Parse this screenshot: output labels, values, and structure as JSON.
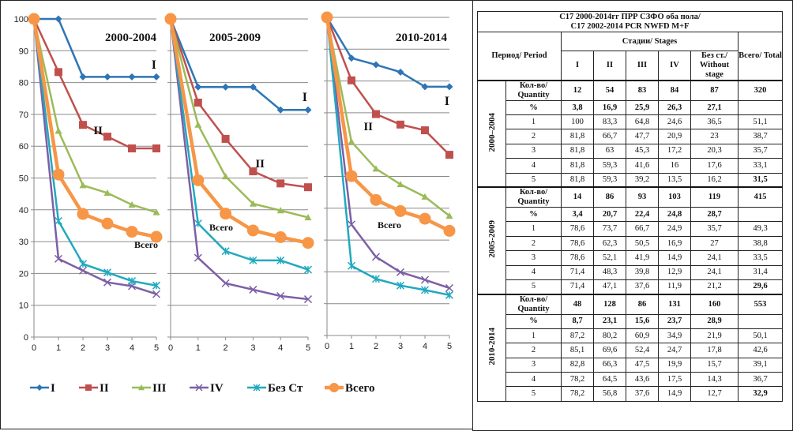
{
  "chart_data": [
    {
      "type": "line",
      "title": "2000-2004",
      "x": [
        0,
        1,
        2,
        3,
        4,
        5
      ],
      "ylim": [
        0,
        100
      ],
      "yticks": [
        0,
        10,
        20,
        30,
        40,
        50,
        60,
        70,
        80,
        90,
        100
      ],
      "xticks": [
        0,
        1,
        2,
        3,
        4,
        5
      ],
      "grid": true,
      "series": [
        {
          "name": "I",
          "values": [
            100,
            100,
            81.8,
            81.8,
            81.8,
            81.8
          ]
        },
        {
          "name": "II",
          "values": [
            100,
            83.3,
            66.7,
            63,
            59.3,
            59.3
          ]
        },
        {
          "name": "III",
          "values": [
            100,
            64.8,
            47.7,
            45.3,
            41.6,
            39.2
          ]
        },
        {
          "name": "IV",
          "values": [
            100,
            24.6,
            20.9,
            17.2,
            16,
            13.5
          ]
        },
        {
          "name": "Без Ст",
          "values": [
            100,
            36.5,
            23,
            20.3,
            17.6,
            16.2
          ]
        },
        {
          "name": "Всего",
          "values": [
            100,
            51.1,
            38.7,
            35.7,
            33.1,
            31.5
          ]
        }
      ],
      "annotations": [
        "I",
        "II",
        "Всего"
      ]
    },
    {
      "type": "line",
      "title": "2005-2009",
      "x": [
        0,
        1,
        2,
        3,
        4,
        5
      ],
      "ylim": [
        0,
        100
      ],
      "xticks": [
        0,
        1,
        2,
        3,
        4,
        5
      ],
      "grid": true,
      "series": [
        {
          "name": "I",
          "values": [
            100,
            78.6,
            78.6,
            78.6,
            71.4,
            71.4
          ]
        },
        {
          "name": "II",
          "values": [
            100,
            73.7,
            62.3,
            52.1,
            48.3,
            47.1
          ]
        },
        {
          "name": "III",
          "values": [
            100,
            66.7,
            50.5,
            41.9,
            39.8,
            37.6
          ]
        },
        {
          "name": "IV",
          "values": [
            100,
            24.9,
            16.9,
            14.9,
            12.9,
            11.9
          ]
        },
        {
          "name": "Без Ст",
          "values": [
            100,
            35.7,
            27,
            24.1,
            24.1,
            21.2
          ]
        },
        {
          "name": "Всего",
          "values": [
            100,
            49.3,
            38.8,
            33.5,
            31.4,
            29.6
          ]
        }
      ],
      "annotations": [
        "I",
        "II",
        "Всего"
      ]
    },
    {
      "type": "line",
      "title": "2010-2014",
      "x": [
        0,
        1,
        2,
        3,
        4,
        5
      ],
      "ylim": [
        0,
        100
      ],
      "xticks": [
        0,
        1,
        2,
        3,
        4,
        5
      ],
      "grid": true,
      "series": [
        {
          "name": "I",
          "values": [
            100,
            87.2,
            85.1,
            82.8,
            78.2,
            78.2
          ]
        },
        {
          "name": "II",
          "values": [
            100,
            80.2,
            69.6,
            66.3,
            64.5,
            56.8
          ]
        },
        {
          "name": "III",
          "values": [
            100,
            60.9,
            52.4,
            47.5,
            43.6,
            37.6
          ]
        },
        {
          "name": "IV",
          "values": [
            100,
            34.9,
            24.7,
            19.9,
            17.5,
            14.9
          ]
        },
        {
          "name": "Без Ст",
          "values": [
            100,
            21.9,
            17.8,
            15.7,
            14.3,
            12.7
          ]
        },
        {
          "name": "Всего",
          "values": [
            100,
            50.1,
            42.6,
            39.1,
            36.7,
            32.9
          ]
        }
      ],
      "annotations": [
        "I",
        "II",
        "Всего"
      ]
    },
    {
      "type": "table",
      "title": "C17 2000-2014гг ПРР СЗФО оба пола/ C17 2002-2014 PCR NWFD M+F"
    }
  ],
  "legend": {
    "placement": "bottom",
    "items": [
      {
        "name": "I",
        "color": "#2E75B6",
        "marker": "diamond"
      },
      {
        "name": "II",
        "color": "#C0504D",
        "marker": "square"
      },
      {
        "name": "III",
        "color": "#9BBB59",
        "marker": "triangle"
      },
      {
        "name": "IV",
        "color": "#7D5FA6",
        "marker": "x"
      },
      {
        "name": "Без Ст",
        "color": "#21A9C0",
        "marker": "star"
      },
      {
        "name": "Всего",
        "color": "#F79646",
        "marker": "circle"
      }
    ]
  },
  "table": {
    "title_line1": "C17 2000-2014гг ПРР СЗФО оба пола/",
    "title_line2": "C17 2002-2014 PCR NWFD M+F",
    "period_header": "Период/ Period",
    "stages_header": "Стадии/ Stages",
    "total_header": "Всего/ Total",
    "stage_cols": [
      "I",
      "II",
      "III",
      "IV",
      "Без ст./ Without stage"
    ],
    "qty_label": "Кол-во/ Quantity",
    "pct_label": "%",
    "periods": [
      {
        "name": "2000–2004",
        "quantity": [
          "12",
          "54",
          "83",
          "84",
          "87",
          "320"
        ],
        "percent": [
          "3,8",
          "16,9",
          "25,9",
          "26,3",
          "27,1",
          ""
        ],
        "years": [
          {
            "y": "1",
            "v": [
              "100",
              "83,3",
              "64,8",
              "24,6",
              "36,5",
              "51,1"
            ]
          },
          {
            "y": "2",
            "v": [
              "81,8",
              "66,7",
              "47,7",
              "20,9",
              "23",
              "38,7"
            ]
          },
          {
            "y": "3",
            "v": [
              "81,8",
              "63",
              "45,3",
              "17,2",
              "20,3",
              "35,7"
            ]
          },
          {
            "y": "4",
            "v": [
              "81,8",
              "59,3",
              "41,6",
              "16",
              "17,6",
              "33,1"
            ]
          },
          {
            "y": "5",
            "v": [
              "81,8",
              "59,3",
              "39,2",
              "13,5",
              "16,2",
              "31,5"
            ]
          }
        ]
      },
      {
        "name": "2005-2009",
        "quantity": [
          "14",
          "86",
          "93",
          "103",
          "119",
          "415"
        ],
        "percent": [
          "3,4",
          "20,7",
          "22,4",
          "24,8",
          "28,7",
          ""
        ],
        "years": [
          {
            "y": "1",
            "v": [
              "78,6",
              "73,7",
              "66,7",
              "24,9",
              "35,7",
              "49,3"
            ]
          },
          {
            "y": "2",
            "v": [
              "78,6",
              "62,3",
              "50,5",
              "16,9",
              "27",
              "38,8"
            ]
          },
          {
            "y": "3",
            "v": [
              "78,6",
              "52,1",
              "41,9",
              "14,9",
              "24,1",
              "33,5"
            ]
          },
          {
            "y": "4",
            "v": [
              "71,4",
              "48,3",
              "39,8",
              "12,9",
              "24,1",
              "31,4"
            ]
          },
          {
            "y": "5",
            "v": [
              "71,4",
              "47,1",
              "37,6",
              "11,9",
              "21,2",
              "29,6"
            ]
          }
        ]
      },
      {
        "name": "2010-2014",
        "quantity": [
          "48",
          "128",
          "86",
          "131",
          "160",
          "553"
        ],
        "percent": [
          "8,7",
          "23,1",
          "15,6",
          "23,7",
          "28,9",
          ""
        ],
        "years": [
          {
            "y": "1",
            "v": [
              "87,2",
              "80,2",
              "60,9",
              "34,9",
              "21,9",
              "50,1"
            ]
          },
          {
            "y": "2",
            "v": [
              "85,1",
              "69,6",
              "52,4",
              "24,7",
              "17,8",
              "42,6"
            ]
          },
          {
            "y": "3",
            "v": [
              "82,8",
              "66,3",
              "47,5",
              "19,9",
              "15,7",
              "39,1"
            ]
          },
          {
            "y": "4",
            "v": [
              "78,2",
              "64,5",
              "43,6",
              "17,5",
              "14,3",
              "36,7"
            ]
          },
          {
            "y": "5",
            "v": [
              "78,2",
              "56,8",
              "37,6",
              "14,9",
              "12,7",
              "32,9"
            ]
          }
        ]
      }
    ]
  }
}
